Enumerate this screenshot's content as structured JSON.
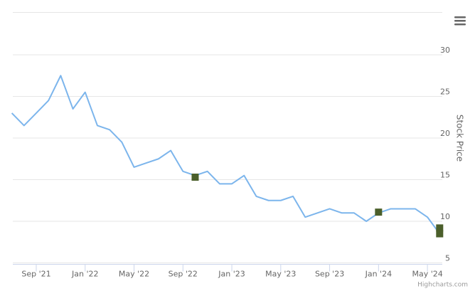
{
  "chart_data": {
    "type": "line",
    "y_axis_title": "Stock Price",
    "credit": "Highcharts.com",
    "x": [
      "2021-07",
      "2021-08",
      "2021-09",
      "2021-10",
      "2021-11",
      "2021-12",
      "2022-01",
      "2022-02",
      "2022-03",
      "2022-04",
      "2022-05",
      "2022-06",
      "2022-07",
      "2022-08",
      "2022-09",
      "2022-10",
      "2022-11",
      "2022-12",
      "2023-01",
      "2023-02",
      "2023-03",
      "2023-04",
      "2023-05",
      "2023-06",
      "2023-07",
      "2023-08",
      "2023-09",
      "2023-10",
      "2023-11",
      "2023-12",
      "2024-01",
      "2024-02",
      "2024-03",
      "2024-04",
      "2024-05",
      "2024-06"
    ],
    "series": [
      {
        "color": "#7cb5ec",
        "marker": "line",
        "values": [
          23,
          21.5,
          23,
          24.5,
          27.5,
          23.5,
          25.5,
          21.5,
          21,
          19.5,
          16.5,
          17,
          17.5,
          18.5,
          16,
          15.5,
          16,
          14.5,
          14.5,
          15.5,
          13,
          12.5,
          12.5,
          13,
          10.5,
          11,
          11.5,
          11,
          11,
          10,
          11,
          11.5,
          11.5,
          11.5,
          10.5,
          8.5
        ]
      },
      {
        "color": "#4b5f2b",
        "marker": "square",
        "x": [
          "2022-10",
          "2024-01",
          "2024-06",
          "2024-06"
        ],
        "values": [
          15.3,
          11.1,
          9.2,
          8.5
        ]
      }
    ],
    "xlim": [
      "2021-07",
      "2024-06"
    ],
    "xticks": [
      {
        "value": "2021-09",
        "label": "Sep '21"
      },
      {
        "value": "2022-01",
        "label": "Jan '22"
      },
      {
        "value": "2022-05",
        "label": "May '22"
      },
      {
        "value": "2022-09",
        "label": "Sep '22"
      },
      {
        "value": "2023-01",
        "label": "Jan '23"
      },
      {
        "value": "2023-05",
        "label": "May '23"
      },
      {
        "value": "2023-09",
        "label": "Sep '23"
      },
      {
        "value": "2024-01",
        "label": "Jan '24"
      },
      {
        "value": "2024-05",
        "label": "May '24"
      }
    ],
    "ylim": [
      5,
      35
    ],
    "yticks": [
      5,
      10,
      15,
      20,
      25,
      30
    ],
    "grid": true,
    "y_axis_side": "right"
  }
}
